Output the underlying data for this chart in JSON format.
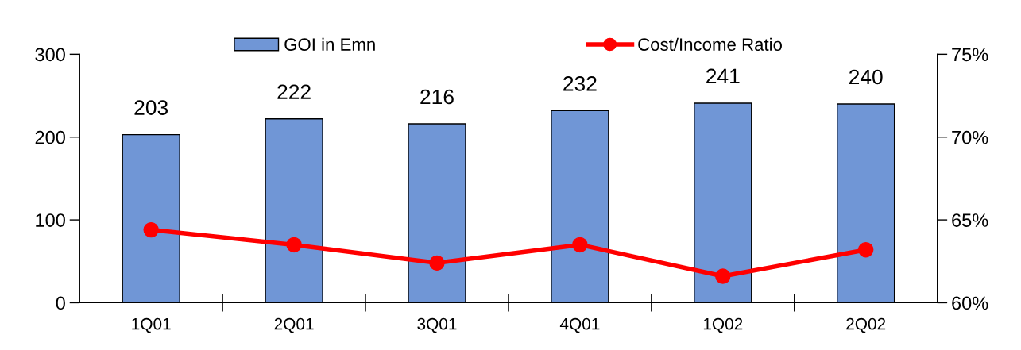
{
  "chart_data": {
    "type": "bar",
    "categories": [
      "1Q01",
      "2Q01",
      "3Q01",
      "4Q01",
      "1Q02",
      "2Q02"
    ],
    "series": [
      {
        "name": "GOI in Emn",
        "color": "#7096d6",
        "values": [
          203,
          222,
          216,
          232,
          241,
          240
        ],
        "value_labels": [
          "203",
          "222",
          "216",
          "232",
          "241",
          "240"
        ]
      },
      {
        "name": "Cost/Income Ratio",
        "type": "line",
        "axis": "y2",
        "color": "#ff0000",
        "marker": "circle",
        "values": [
          64.4,
          63.5,
          62.4,
          63.5,
          61.6,
          63.2
        ]
      }
    ],
    "ylim": [
      0,
      300
    ],
    "yticks": [
      0,
      100,
      200,
      300
    ],
    "y2lim": [
      60,
      75
    ],
    "y2ticks": [
      {
        "value": 60,
        "label": "60%"
      },
      {
        "value": 65,
        "label": "65%"
      },
      {
        "value": 70,
        "label": "70%"
      },
      {
        "value": 75,
        "label": "75%"
      }
    ],
    "legend": "top",
    "grid": false
  }
}
